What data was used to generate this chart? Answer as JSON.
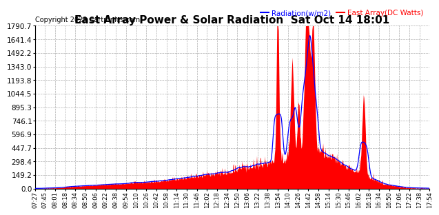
{
  "title": "East Array Power & Solar Radiation  Sat Oct 14 18:01",
  "copyright": "Copyright 2023 Cartronics.com",
  "legend_radiation": "Radiation(w/m2)",
  "legend_east_array": "East Array(DC Watts)",
  "legend_radiation_color": "blue",
  "legend_east_array_color": "red",
  "ylim": [
    0.0,
    1790.7
  ],
  "yticks": [
    0.0,
    149.2,
    298.4,
    447.7,
    596.9,
    746.1,
    895.3,
    1044.5,
    1193.8,
    1343.0,
    1492.2,
    1641.4,
    1790.7
  ],
  "background_color": "#ffffff",
  "plot_bg_color": "#ffffff",
  "grid_color": "#999999",
  "title_fontsize": 11,
  "copyright_fontsize": 7,
  "ytick_fontsize": 7.5,
  "xtick_fontsize": 6,
  "x_labels": [
    "07:27",
    "07:45",
    "08:01",
    "08:18",
    "08:34",
    "08:50",
    "09:06",
    "09:22",
    "09:38",
    "09:54",
    "10:10",
    "10:26",
    "10:42",
    "10:58",
    "11:14",
    "11:30",
    "11:46",
    "12:02",
    "12:18",
    "12:34",
    "12:50",
    "13:06",
    "13:22",
    "13:38",
    "13:54",
    "14:10",
    "14:26",
    "14:42",
    "14:58",
    "15:14",
    "15:30",
    "15:46",
    "16:02",
    "16:18",
    "16:34",
    "16:50",
    "17:06",
    "17:22",
    "17:38",
    "17:54"
  ],
  "fill_color_red": "#ff0000",
  "fill_color_blue": "#0000ff",
  "line_color_blue": "#0000ff",
  "line_color_red": "#ff0000"
}
